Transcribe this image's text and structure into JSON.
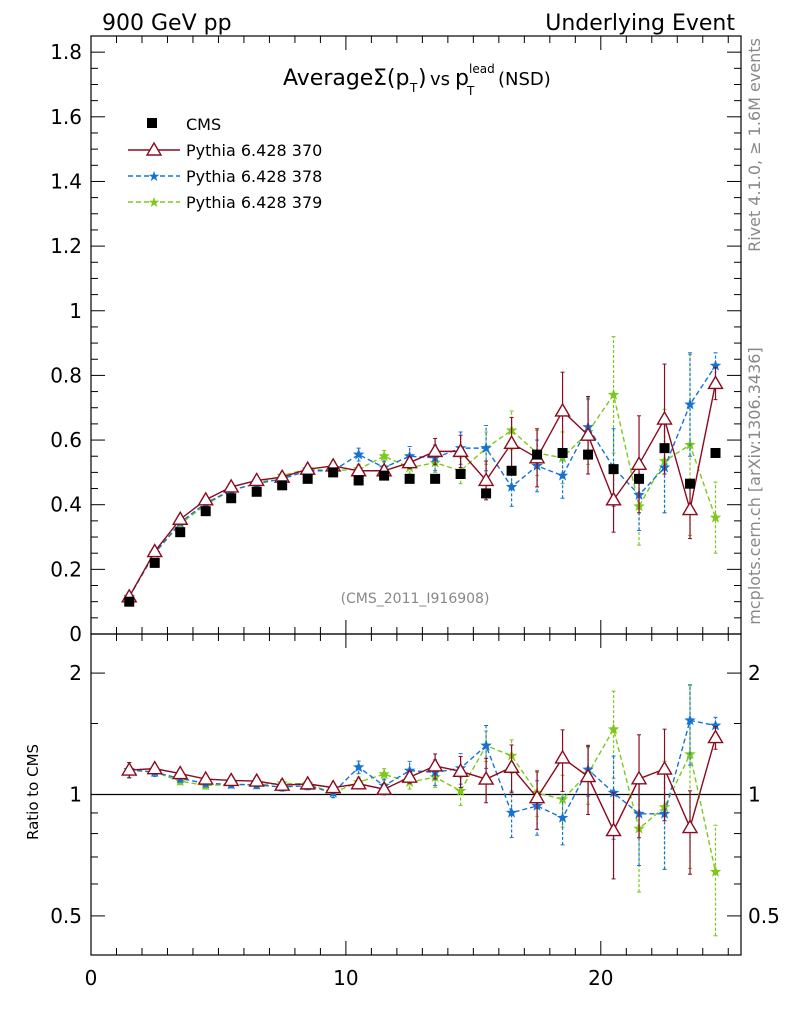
{
  "header": {
    "left": "900 GeV pp",
    "right": "Underlying Event"
  },
  "side_labels": {
    "rivet": "Rivet 4.1.0, ≥ 1.6M events",
    "mcplots": "mcplots.cern.ch [arXiv:1306.3436]"
  },
  "chart_data": {
    "type": "line",
    "title": {
      "prefix": "Average",
      "sigma": "Σ(p",
      "sub_t": "T",
      "close": ")",
      "vs": "vs",
      "p": "p",
      "sup_lead": "lead",
      "sub_t2": "T",
      "suffix": "(NSD)"
    },
    "watermark": "(CMS_2011_I916908)",
    "xlabel": "",
    "ylabel": "",
    "xlim": [
      0,
      25.5
    ],
    "ylim": [
      0,
      1.85
    ],
    "x_ticks": [
      "0",
      "10",
      "20"
    ],
    "y_ticks": [
      "0",
      "0.2",
      "0.4",
      "0.6",
      "0.8",
      "1",
      "1.2",
      "1.4",
      "1.6",
      "1.8"
    ],
    "x": [
      1.5,
      2.5,
      3.5,
      4.5,
      5.5,
      6.5,
      7.5,
      8.5,
      9.5,
      10.5,
      11.5,
      12.5,
      13.5,
      14.5,
      15.5,
      16.5,
      17.5,
      18.5,
      19.5,
      20.5,
      21.5,
      22.5,
      23.5,
      24.5
    ],
    "legend": [
      "CMS",
      "Pythia 6.428 370",
      "Pythia 6.428 378",
      "Pythia 6.428 379"
    ],
    "series": [
      {
        "name": "CMS",
        "color": "#000000",
        "marker": "square",
        "values": [
          0.1,
          0.22,
          0.315,
          0.38,
          0.42,
          0.44,
          0.46,
          0.48,
          0.5,
          0.475,
          0.49,
          0.48,
          0.48,
          0.495,
          0.435,
          0.505,
          0.555,
          0.56,
          0.555,
          0.51,
          0.48,
          0.575,
          0.465,
          0.56
        ]
      },
      {
        "name": "Pythia 6.428 370",
        "color": "#8b0a1e",
        "marker": "triangle",
        "values": [
          0.115,
          0.255,
          0.355,
          0.415,
          0.455,
          0.475,
          0.485,
          0.51,
          0.52,
          0.505,
          0.505,
          0.53,
          0.565,
          0.565,
          0.475,
          0.59,
          0.545,
          0.69,
          0.615,
          0.415,
          0.525,
          0.665,
          0.385,
          0.775
        ],
        "errors": [
          0.005,
          0.006,
          0.007,
          0.008,
          0.009,
          0.01,
          0.011,
          0.012,
          0.014,
          0.015,
          0.016,
          0.018,
          0.04,
          0.05,
          0.06,
          0.08,
          0.09,
          0.12,
          0.12,
          0.1,
          0.15,
          0.17,
          0.09,
          0.05
        ]
      },
      {
        "name": "Pythia 6.428 378",
        "color": "#1673d6",
        "marker": "star",
        "values": [
          0.115,
          0.25,
          0.345,
          0.405,
          0.445,
          0.465,
          0.48,
          0.505,
          0.505,
          0.555,
          0.515,
          0.55,
          0.545,
          0.575,
          0.575,
          0.455,
          0.52,
          0.49,
          0.64,
          0.515,
          0.43,
          0.515,
          0.71,
          0.83
        ],
        "errors": [
          0.005,
          0.006,
          0.007,
          0.008,
          0.009,
          0.01,
          0.011,
          0.012,
          0.014,
          0.02,
          0.02,
          0.03,
          0.04,
          0.05,
          0.07,
          0.06,
          0.08,
          0.07,
          0.09,
          0.12,
          0.11,
          0.14,
          0.16,
          0.04
        ]
      },
      {
        "name": "Pythia 6.428 379",
        "color": "#7cc91b",
        "marker": "star",
        "values": [
          0.115,
          0.25,
          0.34,
          0.4,
          0.445,
          0.465,
          0.49,
          0.51,
          0.505,
          0.51,
          0.55,
          0.515,
          0.53,
          0.505,
          0.575,
          0.63,
          0.56,
          0.545,
          0.625,
          0.74,
          0.395,
          0.535,
          0.585,
          0.36
        ],
        "errors": [
          0.005,
          0.006,
          0.007,
          0.008,
          0.009,
          0.01,
          0.011,
          0.012,
          0.014,
          0.015,
          0.018,
          0.02,
          0.03,
          0.04,
          0.05,
          0.06,
          0.07,
          0.08,
          0.1,
          0.18,
          0.12,
          0.16,
          0.28,
          0.11
        ]
      }
    ],
    "ratio": {
      "ylabel": "Ratio to CMS",
      "ylim_log": [
        0.4,
        2.5
      ],
      "y_ticks": [
        "0.5",
        "1",
        "2"
      ],
      "y_ticks_right": [
        "0.5",
        "1",
        "2"
      ],
      "reference_value": 1
    }
  }
}
